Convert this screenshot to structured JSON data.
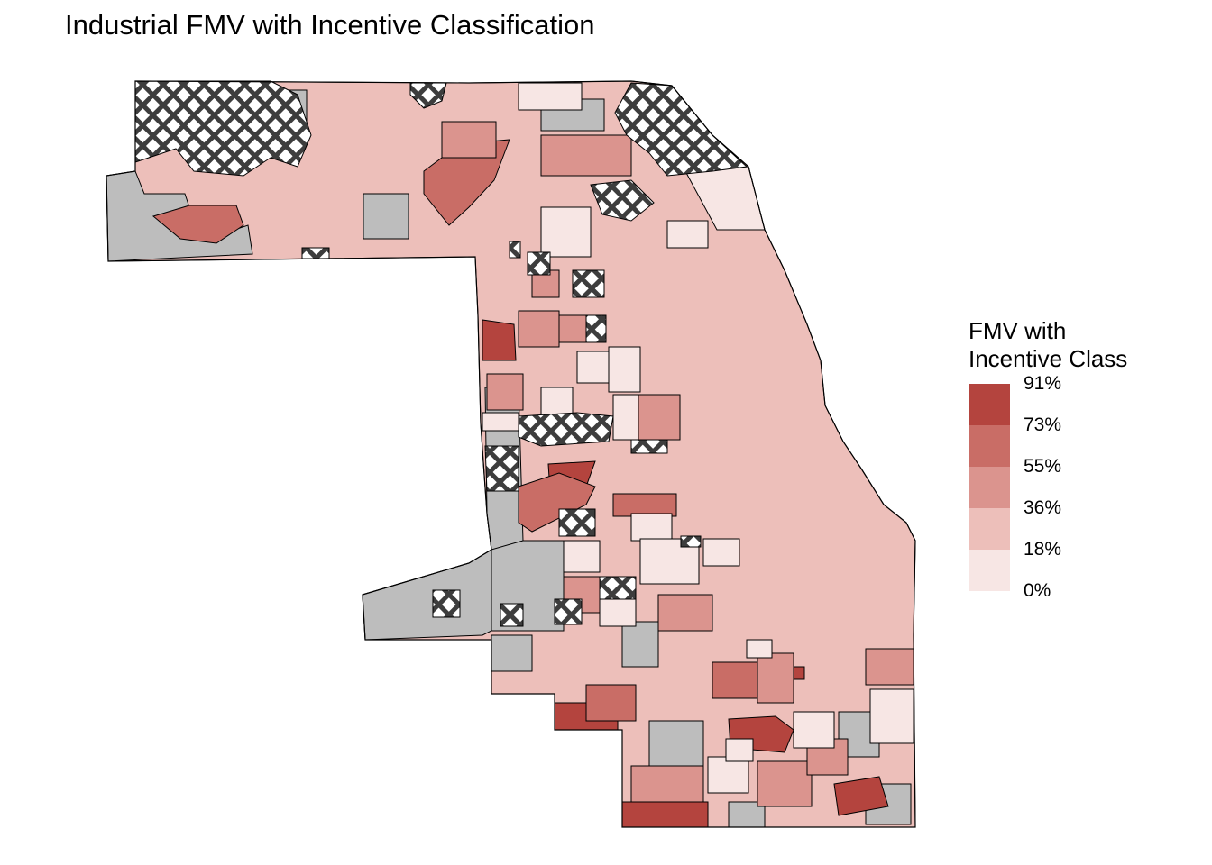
{
  "title": "Industrial FMV with Incentive Classification",
  "legend": {
    "title_line1": "FMV with",
    "title_line2": "Incentive Class",
    "swatches": [
      {
        "color": "#b4443e"
      },
      {
        "color": "#c96d66"
      },
      {
        "color": "#db948e"
      },
      {
        "color": "#edbfba"
      },
      {
        "color": "#f7e6e4"
      }
    ],
    "breaks": [
      "91%",
      "73%",
      "55%",
      "36%",
      "18%",
      "0%"
    ]
  },
  "colors": {
    "missing": "#bdbdbd",
    "border": "#000000",
    "hatch_line": "#3d3d3d"
  }
}
